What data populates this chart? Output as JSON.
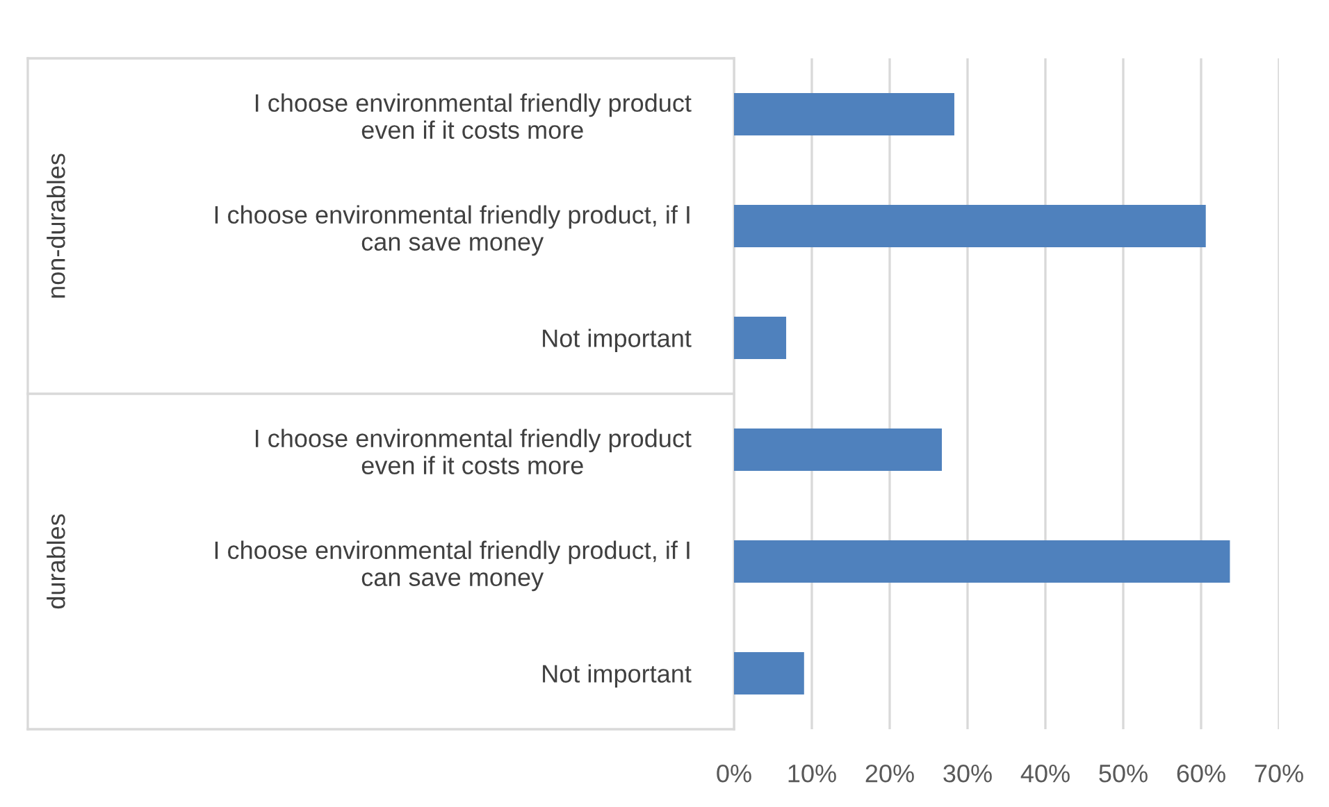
{
  "chart_data": {
    "type": "bar",
    "orientation": "horizontal",
    "categories": [
      "I choose environmental friendly product\neven if it costs more",
      "I choose environmental friendly product, if I\ncan save money",
      "Not important",
      "I choose environmental friendly product\neven if it costs more",
      "I choose environmental friendly product, if I\ncan save money",
      "Not important"
    ],
    "values": [
      28.3,
      60.6,
      6.7,
      26.7,
      63.7,
      9.0
    ],
    "color": "#4f81bd",
    "xlim": [
      0,
      70
    ],
    "xticks": [
      {
        "value": 0,
        "label": "0%"
      },
      {
        "value": 10,
        "label": "10%"
      },
      {
        "value": 20,
        "label": "20%"
      },
      {
        "value": 30,
        "label": "30%"
      },
      {
        "value": 40,
        "label": "40%"
      },
      {
        "value": 50,
        "label": "50%"
      },
      {
        "value": 60,
        "label": "60%"
      },
      {
        "value": 70,
        "label": "70%"
      }
    ],
    "grid": "x",
    "annotations": [
      "non-durables",
      "durables"
    ]
  }
}
